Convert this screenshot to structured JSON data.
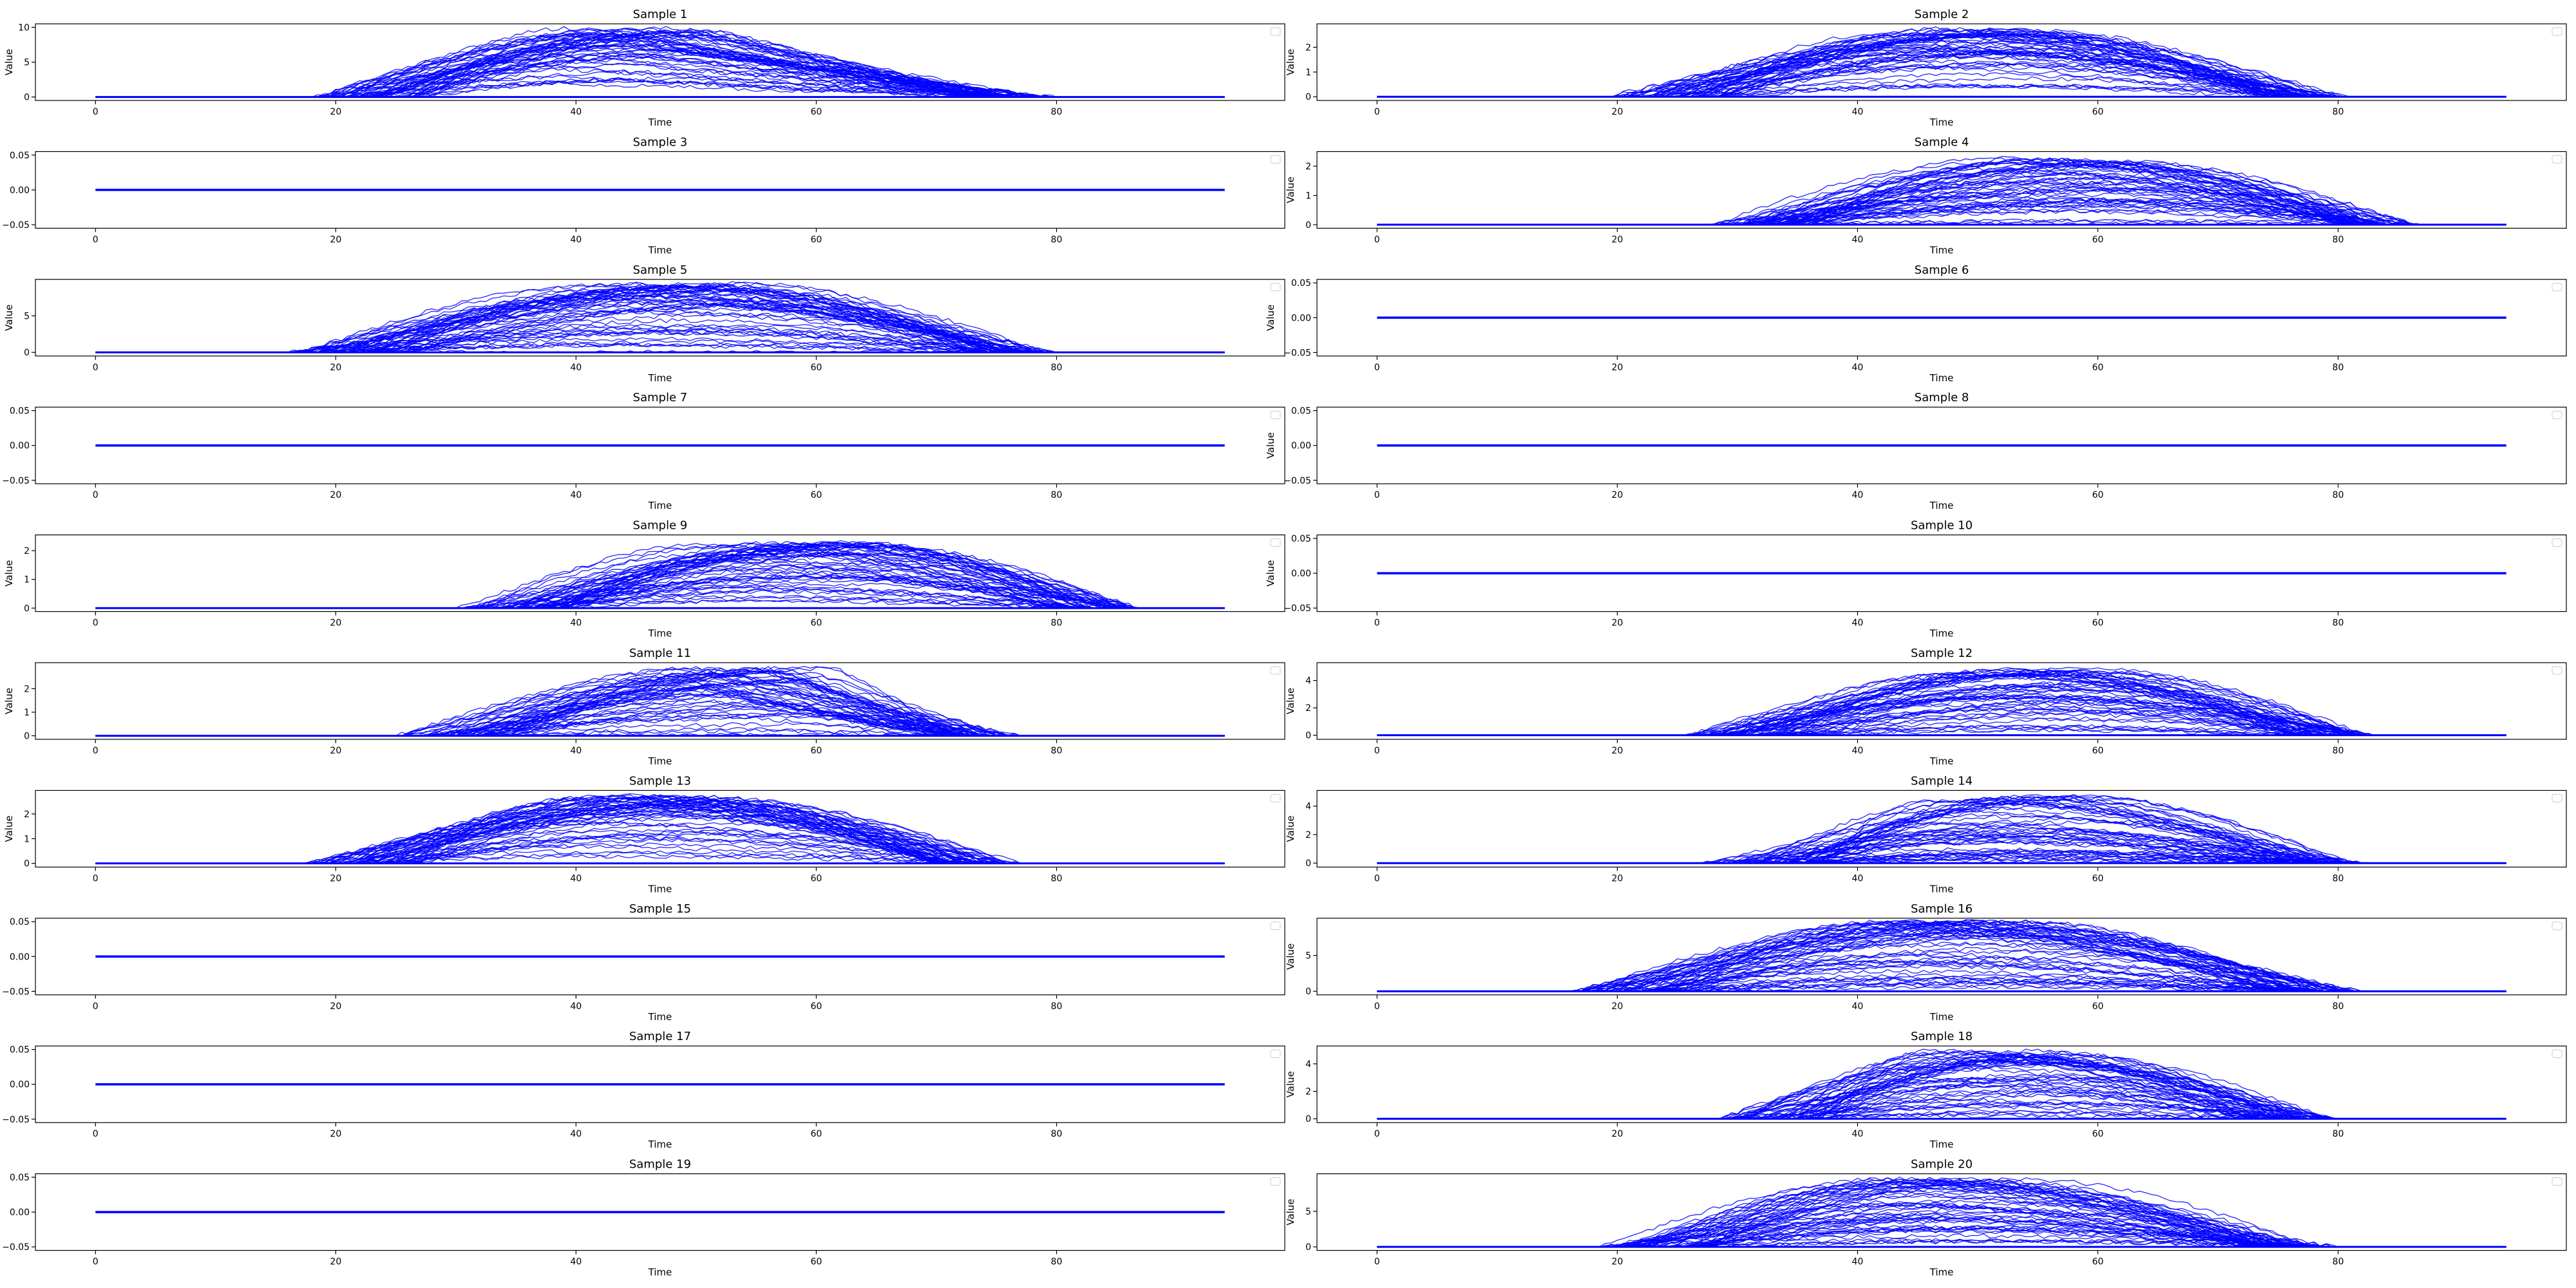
{
  "figure": {
    "line_color": "#0000ff",
    "axis_color": "#000000",
    "legend_color": "#cccccc"
  },
  "chart_data": [
    {
      "type": "line",
      "title": "Sample 1",
      "xlabel": "Time",
      "ylabel": "Value",
      "xlim": [
        -5,
        99
      ],
      "ylim": [
        -0.5,
        10.5
      ],
      "x_ticks": [
        0,
        20,
        40,
        60,
        80
      ],
      "x_tick_labels": [
        "0",
        "20",
        "40",
        "60",
        "80"
      ],
      "y_ticks": [
        0,
        5,
        10
      ],
      "y_tick_labels": [
        "0",
        "5",
        "10"
      ],
      "envelope": {
        "start": 18,
        "peak": 45,
        "end": 80,
        "max": 10,
        "fall_shape": "linear"
      },
      "legend": "top-right",
      "grid": false
    },
    {
      "type": "line",
      "title": "Sample 2",
      "xlabel": "Time",
      "ylabel": "Value",
      "xlim": [
        -5,
        99
      ],
      "ylim": [
        -0.15,
        2.95
      ],
      "x_ticks": [
        0,
        20,
        40,
        60,
        80
      ],
      "x_tick_labels": [
        "0",
        "20",
        "40",
        "60",
        "80"
      ],
      "y_ticks": [
        0,
        1,
        2
      ],
      "y_tick_labels": [
        "0",
        "1",
        "2"
      ],
      "envelope": {
        "start": 19,
        "peak": 50,
        "end": 81,
        "max": 2.8,
        "fall_shape": "curved"
      },
      "legend": "top-right",
      "grid": false
    },
    {
      "type": "line",
      "title": "Sample 3",
      "xlabel": "Time",
      "ylabel": "Value",
      "xlim": [
        -5,
        99
      ],
      "ylim": [
        -0.055,
        0.055
      ],
      "x_ticks": [
        0,
        20,
        40,
        60,
        80
      ],
      "x_tick_labels": [
        "0",
        "20",
        "40",
        "60",
        "80"
      ],
      "y_ticks": [
        -0.05,
        0,
        0.05
      ],
      "y_tick_labels": [
        "−0.05",
        "0.00",
        "0.05"
      ],
      "envelope": {
        "start": 0,
        "peak": 0,
        "end": 0,
        "max": 0,
        "fall_shape": "flat"
      },
      "legend": "top-right",
      "grid": false
    },
    {
      "type": "line",
      "title": "Sample 4",
      "xlabel": "Time",
      "ylabel": "Value",
      "xlim": [
        -5,
        99
      ],
      "ylim": [
        -0.12,
        2.5
      ],
      "x_ticks": [
        0,
        20,
        40,
        60,
        80
      ],
      "x_tick_labels": [
        "0",
        "20",
        "40",
        "60",
        "80"
      ],
      "y_ticks": [
        0,
        1,
        2
      ],
      "y_tick_labels": [
        "0",
        "1",
        "2"
      ],
      "envelope": {
        "start": 27,
        "peak": 58,
        "end": 87,
        "max": 2.3,
        "fall_shape": "curved"
      },
      "legend": "top-right",
      "grid": false
    },
    {
      "type": "line",
      "title": "Sample 5",
      "xlabel": "Time",
      "ylabel": "Value",
      "xlim": [
        -5,
        99
      ],
      "ylim": [
        -0.5,
        10
      ],
      "x_ticks": [
        0,
        20,
        40,
        60,
        80
      ],
      "x_tick_labels": [
        "0",
        "20",
        "40",
        "60",
        "80"
      ],
      "y_ticks": [
        0,
        5
      ],
      "y_tick_labels": [
        "0",
        "5"
      ],
      "envelope": {
        "start": 16,
        "peak": 48,
        "end": 80,
        "max": 9.5,
        "fall_shape": "curved"
      },
      "legend": "top-right",
      "grid": false
    },
    {
      "type": "line",
      "title": "Sample 6",
      "xlabel": "Time",
      "ylabel": "Value",
      "xlim": [
        -5,
        99
      ],
      "ylim": [
        -0.055,
        0.055
      ],
      "x_ticks": [
        0,
        20,
        40,
        60,
        80
      ],
      "x_tick_labels": [
        "0",
        "20",
        "40",
        "60",
        "80"
      ],
      "y_ticks": [
        -0.05,
        0,
        0.05
      ],
      "y_tick_labels": [
        "−0.05",
        "0.00",
        "0.05"
      ],
      "envelope": {
        "start": 0,
        "peak": 0,
        "end": 0,
        "max": 0,
        "fall_shape": "flat"
      },
      "legend": "top-right",
      "grid": false
    },
    {
      "type": "line",
      "title": "Sample 7",
      "xlabel": "Time",
      "ylabel": "Value",
      "xlim": [
        -5,
        99
      ],
      "ylim": [
        -0.055,
        0.055
      ],
      "x_ticks": [
        0,
        20,
        40,
        60,
        80
      ],
      "x_tick_labels": [
        "0",
        "20",
        "40",
        "60",
        "80"
      ],
      "y_ticks": [
        -0.05,
        0,
        0.05
      ],
      "y_tick_labels": [
        "−0.05",
        "0.00",
        "0.05"
      ],
      "envelope": {
        "start": 0,
        "peak": 0,
        "end": 0,
        "max": 0,
        "fall_shape": "flat"
      },
      "legend": "top-right",
      "grid": false
    },
    {
      "type": "line",
      "title": "Sample 8",
      "xlabel": "Time",
      "ylabel": "Value",
      "xlim": [
        -5,
        99
      ],
      "ylim": [
        -0.055,
        0.055
      ],
      "x_ticks": [
        0,
        20,
        40,
        60,
        80
      ],
      "x_tick_labels": [
        "0",
        "20",
        "40",
        "60",
        "80"
      ],
      "y_ticks": [
        -0.05,
        0,
        0.05
      ],
      "y_tick_labels": [
        "−0.05",
        "0.00",
        "0.05"
      ],
      "envelope": {
        "start": 0,
        "peak": 0,
        "end": 0,
        "max": 0,
        "fall_shape": "flat"
      },
      "legend": "top-right",
      "grid": false
    },
    {
      "type": "line",
      "title": "Sample 9",
      "xlabel": "Time",
      "ylabel": "Value",
      "xlim": [
        -5,
        99
      ],
      "ylim": [
        -0.12,
        2.55
      ],
      "x_ticks": [
        0,
        20,
        40,
        60,
        80
      ],
      "x_tick_labels": [
        "0",
        "20",
        "40",
        "60",
        "80"
      ],
      "y_ticks": [
        0,
        1,
        2
      ],
      "y_tick_labels": [
        "0",
        "1",
        "2"
      ],
      "envelope": {
        "start": 30,
        "peak": 58,
        "end": 87,
        "max": 2.3,
        "fall_shape": "curved"
      },
      "legend": "top-right",
      "grid": false
    },
    {
      "type": "line",
      "title": "Sample 10",
      "xlabel": "Time",
      "ylabel": "Value",
      "xlim": [
        -5,
        99
      ],
      "ylim": [
        -0.055,
        0.055
      ],
      "x_ticks": [
        0,
        20,
        40,
        60,
        80
      ],
      "x_tick_labels": [
        "0",
        "20",
        "40",
        "60",
        "80"
      ],
      "y_ticks": [
        -0.05,
        0,
        0.05
      ],
      "y_tick_labels": [
        "−0.05",
        "0.00",
        "0.05"
      ],
      "envelope": {
        "start": 0,
        "peak": 0,
        "end": 0,
        "max": 0,
        "fall_shape": "flat"
      },
      "legend": "top-right",
      "grid": false
    },
    {
      "type": "line",
      "title": "Sample 11",
      "xlabel": "Time",
      "ylabel": "Value",
      "xlim": [
        -5,
        99
      ],
      "ylim": [
        -0.15,
        3.1
      ],
      "x_ticks": [
        0,
        20,
        40,
        60,
        80
      ],
      "x_tick_labels": [
        "0",
        "20",
        "40",
        "60",
        "80"
      ],
      "y_ticks": [
        0,
        1,
        2
      ],
      "y_tick_labels": [
        "0",
        "1",
        "2"
      ],
      "envelope": {
        "start": 25,
        "peak": 55,
        "end": 77,
        "max": 2.9,
        "fall_shape": "linear"
      },
      "legend": "top-right",
      "grid": false
    },
    {
      "type": "line",
      "title": "Sample 12",
      "xlabel": "Time",
      "ylabel": "Value",
      "xlim": [
        -5,
        99
      ],
      "ylim": [
        -0.3,
        5.3
      ],
      "x_ticks": [
        0,
        20,
        40,
        60,
        80
      ],
      "x_tick_labels": [
        "0",
        "20",
        "40",
        "60",
        "80"
      ],
      "y_ticks": [
        0,
        2,
        4
      ],
      "y_tick_labels": [
        "0",
        "2",
        "4"
      ],
      "envelope": {
        "start": 25,
        "peak": 55,
        "end": 83,
        "max": 4.9,
        "fall_shape": "curved"
      },
      "legend": "top-right",
      "grid": false
    },
    {
      "type": "line",
      "title": "Sample 13",
      "xlabel": "Time",
      "ylabel": "Value",
      "xlim": [
        -5,
        99
      ],
      "ylim": [
        -0.15,
        2.95
      ],
      "x_ticks": [
        0,
        20,
        40,
        60,
        80
      ],
      "x_tick_labels": [
        "0",
        "20",
        "40",
        "60",
        "80"
      ],
      "y_ticks": [
        0,
        1,
        2
      ],
      "y_tick_labels": [
        "0",
        "1",
        "2"
      ],
      "envelope": {
        "start": 17,
        "peak": 46,
        "end": 77,
        "max": 2.75,
        "fall_shape": "curved"
      },
      "legend": "top-right",
      "grid": false
    },
    {
      "type": "line",
      "title": "Sample 14",
      "xlabel": "Time",
      "ylabel": "Value",
      "xlim": [
        -5,
        99
      ],
      "ylim": [
        -0.28,
        5.1
      ],
      "x_ticks": [
        0,
        20,
        40,
        60,
        80
      ],
      "x_tick_labels": [
        "0",
        "20",
        "40",
        "60",
        "80"
      ],
      "y_ticks": [
        0,
        2,
        4
      ],
      "y_tick_labels": [
        "0",
        "2",
        "4"
      ],
      "envelope": {
        "start": 27,
        "peak": 53,
        "end": 82,
        "max": 4.7,
        "fall_shape": "curved"
      },
      "legend": "top-right",
      "grid": false
    },
    {
      "type": "line",
      "title": "Sample 15",
      "xlabel": "Time",
      "ylabel": "Value",
      "xlim": [
        -5,
        99
      ],
      "ylim": [
        -0.055,
        0.055
      ],
      "x_ticks": [
        0,
        20,
        40,
        60,
        80
      ],
      "x_tick_labels": [
        "0",
        "20",
        "40",
        "60",
        "80"
      ],
      "y_ticks": [
        -0.05,
        0,
        0.05
      ],
      "y_tick_labels": [
        "−0.05",
        "0.00",
        "0.05"
      ],
      "envelope": {
        "start": 0,
        "peak": 0,
        "end": 0,
        "max": 0,
        "fall_shape": "flat"
      },
      "legend": "top-right",
      "grid": false
    },
    {
      "type": "line",
      "title": "Sample 16",
      "xlabel": "Time",
      "ylabel": "Value",
      "xlim": [
        -5,
        99
      ],
      "ylim": [
        -0.5,
        10.2
      ],
      "x_ticks": [
        0,
        20,
        40,
        60,
        80
      ],
      "x_tick_labels": [
        "0",
        "20",
        "40",
        "60",
        "80"
      ],
      "y_ticks": [
        0,
        5
      ],
      "y_tick_labels": [
        "0",
        "5"
      ],
      "envelope": {
        "start": 16,
        "peak": 48,
        "end": 82,
        "max": 9.8,
        "fall_shape": "curved"
      },
      "legend": "top-right",
      "grid": false
    },
    {
      "type": "line",
      "title": "Sample 17",
      "xlabel": "Time",
      "ylabel": "Value",
      "xlim": [
        -5,
        99
      ],
      "ylim": [
        -0.055,
        0.055
      ],
      "x_ticks": [
        0,
        20,
        40,
        60,
        80
      ],
      "x_tick_labels": [
        "0",
        "20",
        "40",
        "60",
        "80"
      ],
      "y_ticks": [
        -0.05,
        0,
        0.05
      ],
      "y_tick_labels": [
        "−0.05",
        "0.00",
        "0.05"
      ],
      "envelope": {
        "start": 0,
        "peak": 0,
        "end": 0,
        "max": 0,
        "fall_shape": "flat"
      },
      "legend": "top-right",
      "grid": false
    },
    {
      "type": "line",
      "title": "Sample 18",
      "xlabel": "Time",
      "ylabel": "Value",
      "xlim": [
        -5,
        99
      ],
      "ylim": [
        -0.28,
        5.3
      ],
      "x_ticks": [
        0,
        20,
        40,
        60,
        80
      ],
      "x_tick_labels": [
        "0",
        "20",
        "40",
        "60",
        "80"
      ],
      "y_ticks": [
        0,
        2,
        4
      ],
      "y_tick_labels": [
        "0",
        "2",
        "4"
      ],
      "envelope": {
        "start": 28,
        "peak": 52,
        "end": 80,
        "max": 5.0,
        "fall_shape": "curved"
      },
      "legend": "top-right",
      "grid": false
    },
    {
      "type": "line",
      "title": "Sample 19",
      "xlabel": "Time",
      "ylabel": "Value",
      "xlim": [
        -5,
        99
      ],
      "ylim": [
        -0.055,
        0.055
      ],
      "x_ticks": [
        0,
        20,
        40,
        60,
        80
      ],
      "x_tick_labels": [
        "0",
        "20",
        "40",
        "60",
        "80"
      ],
      "y_ticks": [
        -0.05,
        0,
        0.05
      ],
      "y_tick_labels": [
        "−0.05",
        "0.00",
        "0.05"
      ],
      "envelope": {
        "start": 0,
        "peak": 0,
        "end": 0,
        "max": 0,
        "fall_shape": "flat"
      },
      "legend": "top-right",
      "grid": false
    },
    {
      "type": "line",
      "title": "Sample 20",
      "xlabel": "Time",
      "ylabel": "Value",
      "xlim": [
        -5,
        99
      ],
      "ylim": [
        -0.5,
        10.3
      ],
      "x_ticks": [
        0,
        20,
        40,
        60,
        80
      ],
      "x_tick_labels": [
        "0",
        "20",
        "40",
        "60",
        "80"
      ],
      "y_ticks": [
        0,
        5
      ],
      "y_tick_labels": [
        "0",
        "5"
      ],
      "envelope": {
        "start": 18,
        "peak": 48,
        "end": 80,
        "max": 9.8,
        "fall_shape": "curved"
      },
      "legend": "top-right",
      "grid": false
    }
  ]
}
